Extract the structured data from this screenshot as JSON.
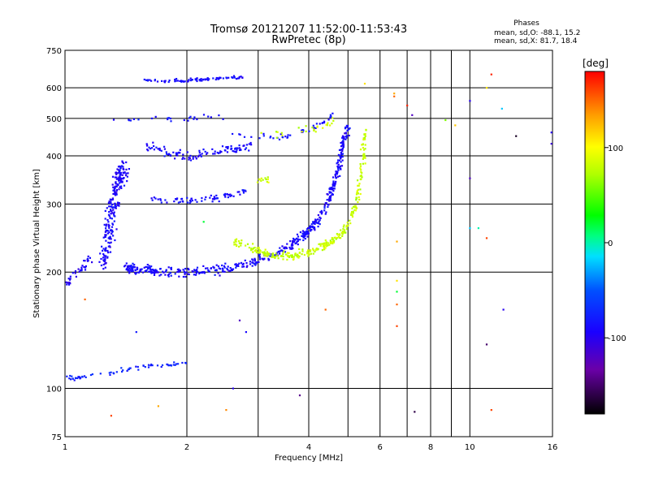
{
  "header": {
    "title_line1": "Tromsø 20121207 11:52:00-11:53:43",
    "title_line2": "RwPretec (8p)"
  },
  "phases": {
    "heading": "Phases",
    "line_o": "mean, sd,O: -88.1, 15.2",
    "line_x": "mean, sd,X: 81.7, 18.4"
  },
  "colorbar": {
    "unit": "[deg]",
    "tick_labels": [
      "100",
      "0",
      "-100"
    ],
    "tick_values": [
      100,
      0,
      -100
    ],
    "range": [
      -180,
      180
    ]
  },
  "chart_data": {
    "type": "scatter",
    "xlabel": "Frequency [MHz]",
    "ylabel": "Stationary phase Virtual Height [km]",
    "x_scale": "log",
    "y_scale": "log",
    "xlim": [
      1,
      16
    ],
    "ylim": [
      75,
      750
    ],
    "x_ticks": [
      1,
      2,
      4,
      6,
      8,
      10,
      16
    ],
    "x_tick_labels": [
      "1",
      "2",
      "4",
      "6",
      "8",
      "10",
      "16"
    ],
    "x_minor": [
      3,
      5,
      7,
      9
    ],
    "y_ticks": [
      75,
      100,
      200,
      300,
      400,
      500,
      600,
      750
    ],
    "y_tick_labels": [
      "75",
      "100",
      "200",
      "300",
      "400",
      "500",
      "600",
      "750"
    ],
    "grid": true,
    "color_encoding": "phase [deg]",
    "clusters": [
      {
        "name": "O-trace F2",
        "phase": -90,
        "spread": 14,
        "x": [
          1.4,
          1.5,
          1.7,
          2.0,
          2.4,
          2.8,
          3.2,
          3.6,
          3.9,
          4.2,
          4.5,
          4.7,
          4.85,
          5.0
        ],
        "y": [
          205,
          203,
          201,
          200,
          203,
          210,
          220,
          235,
          250,
          270,
          310,
          360,
          420,
          480
        ],
        "jitter": 0.04,
        "n": 520
      },
      {
        "name": "O-trace E/F1 low",
        "phase": -95,
        "spread": 12,
        "x": [
          1.0,
          1.05,
          1.1,
          1.15
        ],
        "y": [
          185,
          195,
          205,
          215
        ],
        "jitter": 0.05,
        "n": 40
      },
      {
        "name": "O-trace spread F",
        "phase": -92,
        "spread": 14,
        "x": [
          1.25,
          1.28,
          1.3,
          1.33,
          1.36,
          1.4
        ],
        "y": [
          210,
          240,
          280,
          320,
          350,
          370
        ],
        "jitter": 0.08,
        "n": 230
      },
      {
        "name": "O-trace 2nd hop",
        "phase": -88,
        "spread": 14,
        "x": [
          1.6,
          1.8,
          2.0,
          2.2,
          2.4,
          2.6,
          2.8
        ],
        "y": [
          310,
          308,
          306,
          308,
          312,
          318,
          326
        ],
        "jitter": 0.03,
        "n": 70
      },
      {
        "name": "O-trace 3rd hop",
        "phase": -90,
        "spread": 14,
        "x": [
          1.55,
          1.8,
          2.0,
          2.3,
          2.6,
          2.9
        ],
        "y": [
          430,
          405,
          400,
          408,
          418,
          425
        ],
        "jitter": 0.04,
        "n": 110
      },
      {
        "name": "O-trace upper",
        "phase": -85,
        "spread": 14,
        "x": [
          2.6,
          3.0,
          3.4,
          3.8,
          4.1,
          4.4,
          4.6
        ],
        "y": [
          455,
          450,
          445,
          460,
          470,
          490,
          520
        ],
        "jitter": 0.03,
        "n": 45
      },
      {
        "name": "O-trace 4th hop",
        "phase": -88,
        "spread": 12,
        "x": [
          1.55,
          1.8,
          2.0,
          2.2,
          2.5,
          2.8
        ],
        "y": [
          630,
          625,
          627,
          630,
          638,
          640
        ],
        "jitter": 0.015,
        "n": 85
      },
      {
        "name": "O-trace 500 km",
        "phase": -86,
        "spread": 12,
        "x": [
          1.3,
          1.5,
          1.8,
          2.0,
          2.2,
          2.5
        ],
        "y": [
          495,
          500,
          498,
          502,
          505,
          498
        ],
        "jitter": 0.02,
        "n": 25
      },
      {
        "name": "Es trace",
        "phase": -75,
        "spread": 15,
        "x": [
          1.0,
          1.1,
          1.25,
          1.4,
          1.6,
          1.8,
          2.0
        ],
        "y": [
          106,
          107,
          109,
          112,
          114,
          115,
          116
        ],
        "jitter": 0.02,
        "n": 65
      },
      {
        "name": "X-trace F2",
        "phase": 80,
        "spread": 14,
        "x": [
          2.6,
          2.9,
          3.2,
          3.6,
          4.0,
          4.4,
          4.8,
          5.1,
          5.3,
          5.45,
          5.5
        ],
        "y": [
          240,
          230,
          222,
          220,
          225,
          235,
          250,
          275,
          320,
          390,
          470
        ],
        "jitter": 0.035,
        "n": 300
      },
      {
        "name": "X-trace 2nd",
        "phase": 80,
        "spread": 16,
        "x": [
          3.0,
          3.2
        ],
        "y": [
          350,
          345
        ],
        "jitter": 0.03,
        "n": 12
      },
      {
        "name": "X-trace upper",
        "phase": 82,
        "spread": 16,
        "x": [
          3.0,
          3.5,
          4.0,
          4.4,
          4.8
        ],
        "y": [
          455,
          460,
          470,
          480,
          500
        ],
        "jitter": 0.04,
        "n": 25
      }
    ],
    "isolated_points": [
      {
        "x": 1.12,
        "y": 170,
        "phase": 150
      },
      {
        "x": 1.7,
        "y": 90,
        "phase": 130
      },
      {
        "x": 1.3,
        "y": 85,
        "phase": 160
      },
      {
        "x": 2.5,
        "y": 88,
        "phase": 140
      },
      {
        "x": 2.6,
        "y": 100,
        "phase": -100
      },
      {
        "x": 2.7,
        "y": 150,
        "phase": -120
      },
      {
        "x": 2.8,
        "y": 140,
        "phase": -90
      },
      {
        "x": 3.8,
        "y": 96,
        "phase": -140
      },
      {
        "x": 4.4,
        "y": 160,
        "phase": 150
      },
      {
        "x": 5.5,
        "y": 615,
        "phase": 110
      },
      {
        "x": 6.5,
        "y": 580,
        "phase": 130
      },
      {
        "x": 6.5,
        "y": 570,
        "phase": 150
      },
      {
        "x": 6.6,
        "y": 240,
        "phase": 130
      },
      {
        "x": 6.6,
        "y": 190,
        "phase": 110
      },
      {
        "x": 6.6,
        "y": 178,
        "phase": 20
      },
      {
        "x": 6.6,
        "y": 165,
        "phase": 150
      },
      {
        "x": 6.6,
        "y": 145,
        "phase": 160
      },
      {
        "x": 7.0,
        "y": 540,
        "phase": 170
      },
      {
        "x": 7.2,
        "y": 510,
        "phase": -120
      },
      {
        "x": 7.3,
        "y": 87,
        "phase": -160
      },
      {
        "x": 8.7,
        "y": 495,
        "phase": 60
      },
      {
        "x": 9.2,
        "y": 480,
        "phase": 120
      },
      {
        "x": 10.0,
        "y": 555,
        "phase": -100
      },
      {
        "x": 10.0,
        "y": 350,
        "phase": -120
      },
      {
        "x": 10.0,
        "y": 260,
        "phase": -20
      },
      {
        "x": 10.5,
        "y": 260,
        "phase": 0
      },
      {
        "x": 11.0,
        "y": 600,
        "phase": 110
      },
      {
        "x": 11.0,
        "y": 245,
        "phase": 160
      },
      {
        "x": 11.0,
        "y": 130,
        "phase": -150
      },
      {
        "x": 11.3,
        "y": 650,
        "phase": 170
      },
      {
        "x": 11.3,
        "y": 88,
        "phase": 160
      },
      {
        "x": 12.0,
        "y": 530,
        "phase": -20
      },
      {
        "x": 12.1,
        "y": 160,
        "phase": -100
      },
      {
        "x": 13.0,
        "y": 450,
        "phase": -170
      },
      {
        "x": 15.9,
        "y": 460,
        "phase": -100
      },
      {
        "x": 15.9,
        "y": 430,
        "phase": -110
      },
      {
        "x": 2.2,
        "y": 270,
        "phase": 20
      },
      {
        "x": 1.5,
        "y": 140,
        "phase": -80
      }
    ]
  }
}
